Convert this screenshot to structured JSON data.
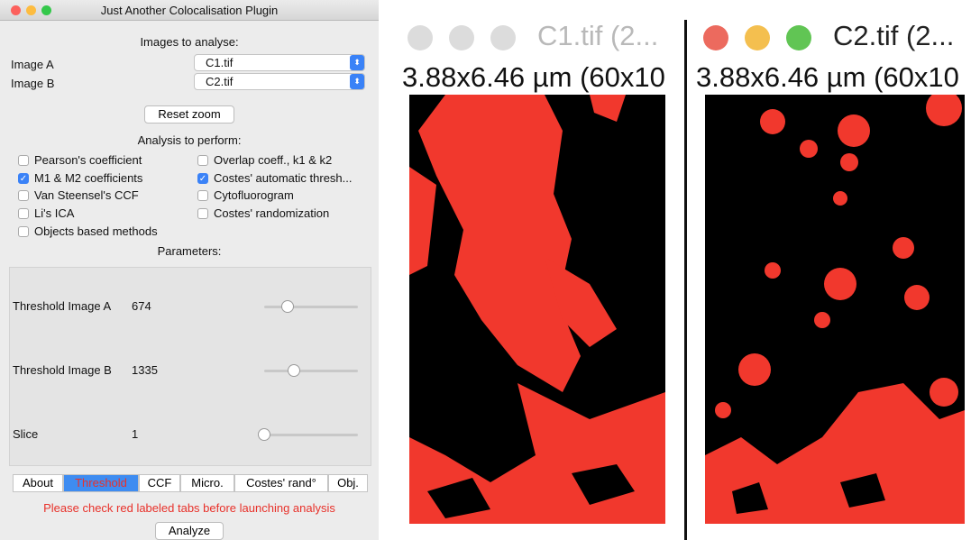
{
  "plugin": {
    "title": "Just Another Colocalisation Plugin",
    "images_header": "Images to analyse:",
    "image_a": {
      "label": "Image A",
      "value": "C1.tif"
    },
    "image_b": {
      "label": "Image B",
      "value": "C2.tif"
    },
    "reset_zoom": "Reset zoom",
    "analysis_header": "Analysis to perform:",
    "options": [
      {
        "label": "Pearson's coefficient",
        "checked": false
      },
      {
        "label": "M1 & M2 coefficients",
        "checked": true
      },
      {
        "label": "Van Steensel's CCF",
        "checked": false
      },
      {
        "label": "Li's ICA",
        "checked": false
      },
      {
        "label": "Objects based methods",
        "checked": false
      },
      {
        "label": "Overlap coeff., k1 & k2",
        "checked": false
      },
      {
        "label": "Costes' automatic thresh...",
        "checked": true
      },
      {
        "label": "Cytofluorogram",
        "checked": false
      },
      {
        "label": "Costes' randomization",
        "checked": false
      }
    ],
    "parameters_header": "Parameters:",
    "parameters": [
      {
        "label": "Threshold Image A",
        "value": 674
      },
      {
        "label": "Threshold Image B",
        "value": 1335
      },
      {
        "label": "Slice",
        "value": 1
      }
    ],
    "tabs": [
      {
        "label": "About",
        "active": false
      },
      {
        "label": "Threshold",
        "active": true
      },
      {
        "label": "CCF",
        "active": false
      },
      {
        "label": "Micro.",
        "active": false
      },
      {
        "label": "Costes' rand°",
        "active": false
      },
      {
        "label": "Obj.",
        "active": false
      }
    ],
    "warning": "Please check red labeled tabs before launching analysis",
    "analyze": "Analyze"
  },
  "windows": [
    {
      "title": "C1.tif (2...",
      "info": "3.88x6.46 µm (60x10"
    },
    {
      "title": "C2.tif (2...",
      "info": "3.88x6.46 µm (60x10"
    }
  ]
}
